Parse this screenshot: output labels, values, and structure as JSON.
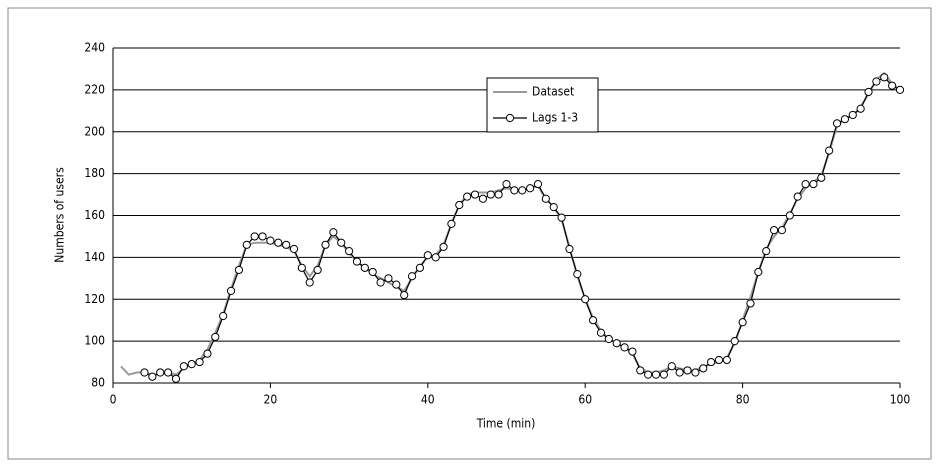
{
  "chart_data": {
    "type": "line",
    "x_label": "Time (min)",
    "y_label": "Numbers of users",
    "x": [
      1,
      2,
      3,
      4,
      5,
      6,
      7,
      8,
      9,
      10,
      11,
      12,
      13,
      14,
      15,
      16,
      17,
      18,
      19,
      20,
      21,
      22,
      23,
      24,
      25,
      26,
      27,
      28,
      29,
      30,
      31,
      32,
      33,
      34,
      35,
      36,
      37,
      38,
      39,
      40,
      41,
      42,
      43,
      44,
      45,
      46,
      47,
      48,
      49,
      50,
      51,
      52,
      53,
      54,
      55,
      56,
      57,
      58,
      59,
      60,
      61,
      62,
      63,
      64,
      65,
      66,
      67,
      68,
      69,
      70,
      71,
      72,
      73,
      74,
      75,
      76,
      77,
      78,
      79,
      80,
      81,
      82,
      83,
      84,
      85,
      86,
      87,
      88,
      89,
      90,
      91,
      92,
      93,
      94,
      95,
      96,
      97,
      98,
      99,
      100
    ],
    "series": [
      {
        "name": "Dataset",
        "color": "#999999",
        "markers": false,
        "values": [
          88,
          84,
          85,
          85,
          84,
          84,
          85,
          84,
          87,
          89,
          91,
          96,
          104,
          113,
          125,
          136,
          146,
          147,
          147,
          147,
          146,
          145,
          143,
          136,
          131,
          136,
          146,
          150,
          147,
          142,
          138,
          135,
          132,
          130,
          128,
          126,
          124,
          130,
          136,
          140,
          141,
          146,
          156,
          165,
          170,
          171,
          171,
          171,
          172,
          173,
          172,
          172,
          173,
          174,
          168,
          164,
          158,
          145,
          131,
          120,
          111,
          105,
          101,
          99,
          97,
          94,
          87,
          85,
          85,
          86,
          88,
          87,
          86,
          86,
          88,
          89,
          90,
          92,
          99,
          110,
          121,
          133,
          144,
          150,
          154,
          161,
          168,
          173,
          176,
          179,
          190,
          203,
          206,
          208,
          212,
          218,
          225,
          228,
          223,
          220
        ]
      },
      {
        "name": "Lags 1-3",
        "color": "#000000",
        "markers": true,
        "values": [
          null,
          null,
          null,
          85,
          83,
          85,
          85,
          82,
          88,
          89,
          90,
          94,
          102,
          112,
          124,
          134,
          146,
          150,
          150,
          148,
          147,
          146,
          144,
          135,
          128,
          134,
          146,
          152,
          147,
          143,
          138,
          135,
          133,
          128,
          130,
          127,
          122,
          131,
          135,
          141,
          140,
          145,
          156,
          165,
          169,
          170,
          168,
          170,
          170,
          175,
          172,
          172,
          173,
          175,
          168,
          164,
          159,
          144,
          132,
          120,
          110,
          104,
          101,
          99,
          97,
          95,
          86,
          84,
          84,
          84,
          88,
          85,
          86,
          85,
          87,
          90,
          91,
          91,
          100,
          109,
          118,
          133,
          143,
          153,
          153,
          160,
          169,
          175,
          175,
          178,
          191,
          204,
          206,
          208,
          211,
          219,
          224,
          226,
          222,
          220
        ]
      }
    ],
    "xlim": [
      0,
      100
    ],
    "xticks": [
      0,
      20,
      40,
      60,
      80,
      100
    ],
    "ylim": [
      80,
      240
    ],
    "yticks": [
      80,
      100,
      120,
      140,
      160,
      180,
      200,
      220,
      240
    ],
    "grid": true,
    "legend": "top-center"
  }
}
